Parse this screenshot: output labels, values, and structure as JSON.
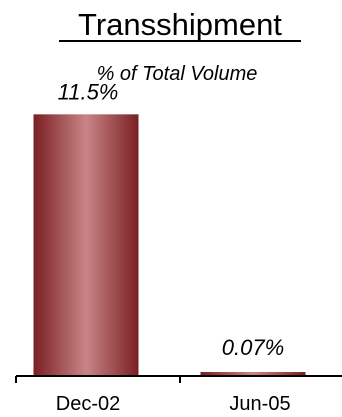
{
  "chart_data": {
    "type": "bar",
    "title": "Transshipment",
    "subtitle": "% of Total Volume",
    "categories": [
      "Dec-02",
      "Jun-05"
    ],
    "values": [
      11.5,
      0.07
    ],
    "value_labels": [
      "11.5%",
      "0.07%"
    ],
    "unit": "%",
    "ylim": [
      0,
      12
    ],
    "grid": false,
    "legend": "none",
    "bar_color": "#b86f70",
    "bar_edge_color": "#7a1f22"
  }
}
